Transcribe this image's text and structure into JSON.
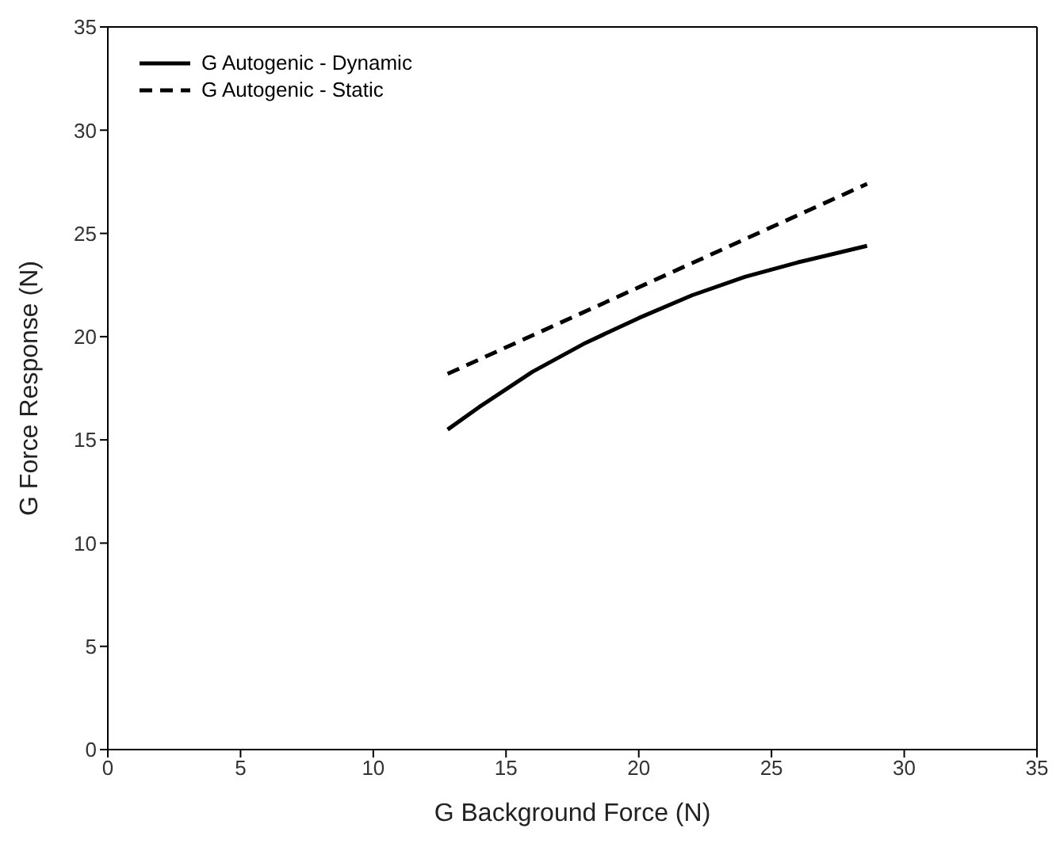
{
  "chart_data": {
    "type": "line",
    "xlabel": "G Background Force (N)",
    "ylabel": "G Force Response (N)",
    "xlim": [
      0,
      35
    ],
    "xticks": [
      0,
      5,
      10,
      15,
      20,
      25,
      30,
      35
    ],
    "ylim": [
      0,
      35
    ],
    "yticks": [
      0,
      5,
      10,
      15,
      20,
      25,
      30,
      35
    ],
    "grid": false,
    "legend": "top left",
    "marker": "none",
    "series": [
      {
        "name": "G Autogenic - Dynamic",
        "color": "#000000",
        "line_style": "solid",
        "x": [
          12.8,
          14,
          16,
          18,
          20,
          22,
          24,
          26,
          28.6
        ],
        "values": [
          15.5,
          16.6,
          18.3,
          19.7,
          20.9,
          22.0,
          22.9,
          23.6,
          24.4
        ]
      },
      {
        "name": "G Autogenic - Static",
        "color": "#000000",
        "line_style": "dashed",
        "x": [
          12.8,
          28.6
        ],
        "values": [
          18.2,
          27.4
        ]
      }
    ]
  }
}
